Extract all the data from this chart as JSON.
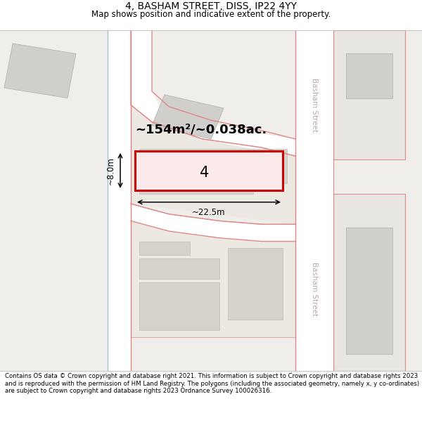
{
  "title": "4, BASHAM STREET, DISS, IP22 4YY",
  "subtitle": "Map shows position and indicative extent of the property.",
  "footer": "Contains OS data © Crown copyright and database right 2021. This information is subject to Crown copyright and database rights 2023 and is reproduced with the permission of HM Land Registry. The polygons (including the associated geometry, namely x, y co-ordinates) are subject to Crown copyright and database rights 2023 Ordnance Survey 100026316.",
  "area_label": "~154m²/~0.038ac.",
  "width_label": "~22.5m",
  "height_label": "~8.0m",
  "property_number": "4",
  "map_bg": "#f0eeea",
  "road_color": "#e08888",
  "blue_line_color": "#a0c8d0",
  "building_fill": "#d0cfcc",
  "building_edge": "#b8b5b0",
  "plot_fill": "#f5f0f0",
  "highlight_color": "#cc0000",
  "street_label_color": "#b8aaa8",
  "title_fontsize": 10,
  "subtitle_fontsize": 8.5,
  "footer_fontsize": 6.2
}
